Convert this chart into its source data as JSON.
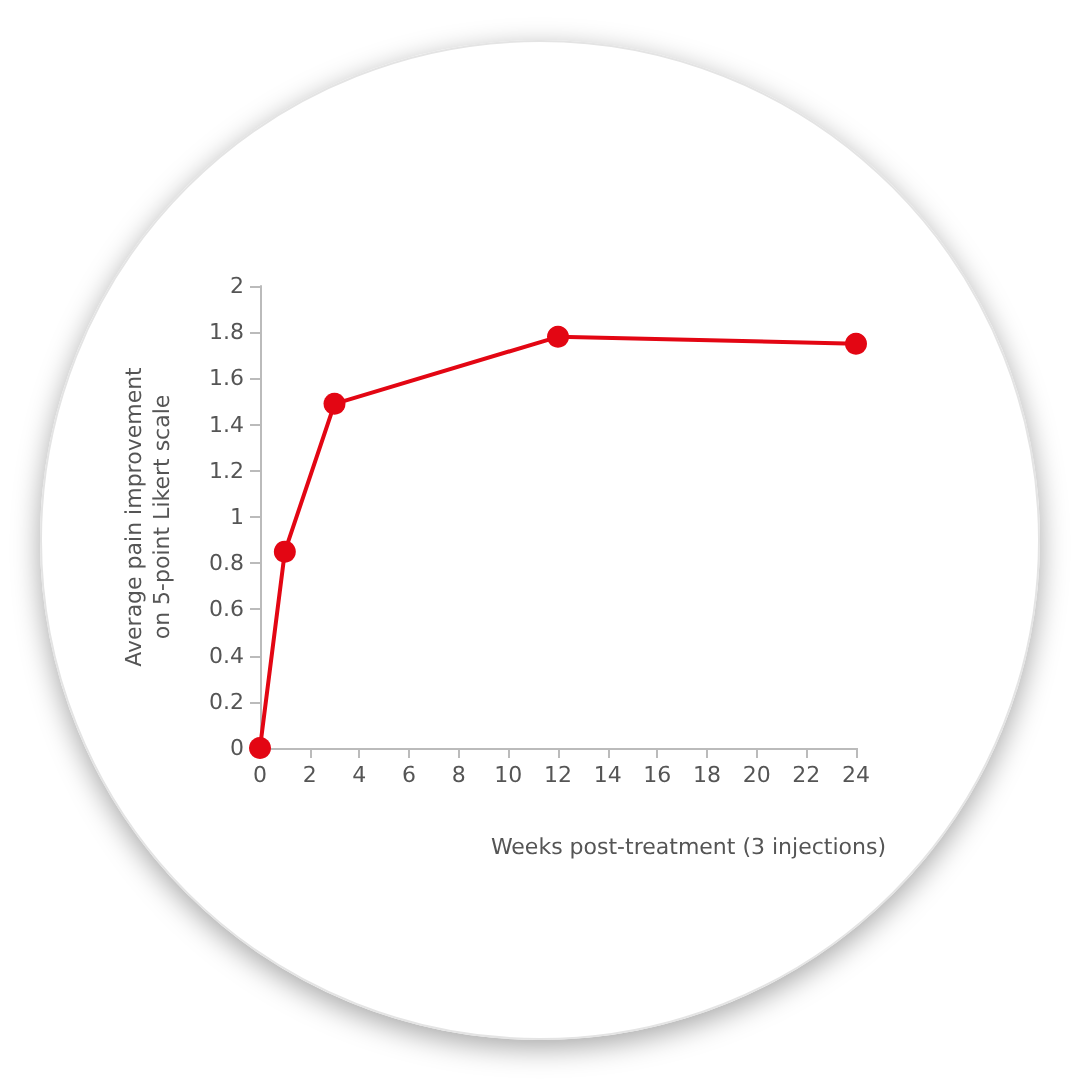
{
  "chart_data": {
    "type": "line",
    "xlabel": "Weeks post-treatment (3 injections)",
    "ylabel": "Average pain improvement\non 5-point Likert scale",
    "x": [
      0,
      1,
      3,
      12,
      24
    ],
    "series": [
      {
        "color": "#e30613",
        "values": [
          0,
          0.85,
          1.49,
          1.78,
          1.75
        ]
      }
    ],
    "xlim": [
      0,
      24
    ],
    "xticks": [
      0,
      2,
      4,
      6,
      8,
      10,
      12,
      14,
      16,
      18,
      20,
      22,
      24
    ],
    "ylim": [
      0,
      2
    ],
    "yticks": [
      0,
      0.2,
      0.4,
      0.6,
      0.8,
      1,
      1.2,
      1.4,
      1.6,
      1.8,
      2
    ],
    "grid": false,
    "marker": "circle",
    "line_style": "solid"
  }
}
